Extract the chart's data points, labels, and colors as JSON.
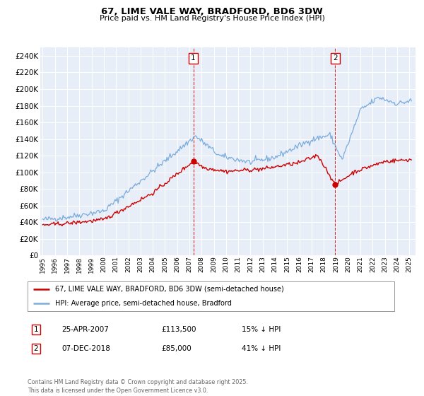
{
  "title": "67, LIME VALE WAY, BRADFORD, BD6 3DW",
  "subtitle": "Price paid vs. HM Land Registry's House Price Index (HPI)",
  "background_color": "#ffffff",
  "plot_bg_color": "#e8eef8",
  "grid_color": "#ffffff",
  "red_color": "#cc0000",
  "blue_color": "#7aacdc",
  "sale1_date": 2007.32,
  "sale1_price": 113500,
  "sale2_date": 2018.93,
  "sale2_price": 85000,
  "ylim": [
    0,
    250000
  ],
  "xlim": [
    1994.8,
    2025.5
  ],
  "legend_label_red": "67, LIME VALE WAY, BRADFORD, BD6 3DW (semi-detached house)",
  "legend_label_blue": "HPI: Average price, semi-detached house, Bradford",
  "annotation1_date": "25-APR-2007",
  "annotation1_price": "£113,500",
  "annotation1_hpi": "15% ↓ HPI",
  "annotation2_date": "07-DEC-2018",
  "annotation2_price": "£85,000",
  "annotation2_hpi": "41% ↓ HPI",
  "footer": "Contains HM Land Registry data © Crown copyright and database right 2025.\nThis data is licensed under the Open Government Licence v3.0."
}
